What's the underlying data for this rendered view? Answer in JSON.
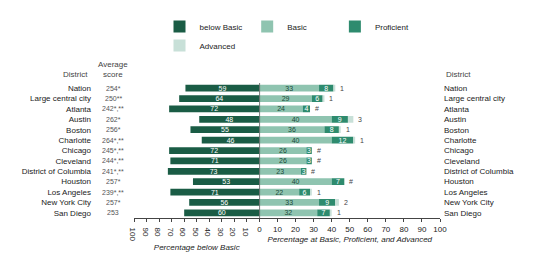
{
  "chart_data": [
    {
      "type": "bar",
      "orientation": "horizontal",
      "data_labels": true,
      "grid": false,
      "legend": "top",
      "xlabel": "Percentage below Basic",
      "category_header": "District",
      "score_header": "Average\nscore",
      "categories": [
        "Nation",
        "Large central city",
        "Atlanta",
        "Austin",
        "Boston",
        "Charlotte",
        "Chicago",
        "Cleveland",
        "District of Columbia",
        "Houston",
        "Los Angeles",
        "New York City",
        "San Diego"
      ],
      "scores": [
        "254*",
        "250**",
        "242*,**",
        "262*",
        "256*",
        "264*,**",
        "245*,**",
        "244*,**",
        "241*,**",
        "257*",
        "239*,**",
        "257*",
        "253"
      ],
      "series": [
        {
          "name": "below Basic",
          "color": "#1a5c45",
          "values": [
            59,
            64,
            72,
            48,
            55,
            46,
            72,
            71,
            73,
            53,
            71,
            56,
            60
          ]
        }
      ],
      "xlim": [
        100,
        0
      ],
      "xticks": [
        100,
        90,
        80,
        70,
        60,
        50,
        40,
        30,
        20,
        10
      ]
    },
    {
      "type": "bar",
      "orientation": "horizontal",
      "stacked": true,
      "data_labels": true,
      "grid": false,
      "legend": "top",
      "xlabel": "Percentage at Basic, Proficient, and Advanced",
      "category_header": "District",
      "categories": [
        "Nation",
        "Large central city",
        "Atlanta",
        "Austin",
        "Boston",
        "Charlotte",
        "Chicago",
        "Cleveland",
        "District of Columbia",
        "Houston",
        "Los Angeles",
        "New York City",
        "San Diego"
      ],
      "series": [
        {
          "name": "Basic",
          "color": "#8fc4b0",
          "values": [
            33,
            29,
            24,
            40,
            36,
            40,
            26,
            26,
            23,
            40,
            22,
            33,
            32
          ]
        },
        {
          "name": "Proficient",
          "color": "#2e8b6e",
          "values": [
            8,
            6,
            4,
            9,
            8,
            12,
            3,
            3,
            3,
            7,
            6,
            9,
            7
          ]
        },
        {
          "name": "Advanced",
          "color": "#c8e0d8",
          "values": [
            1,
            1,
            0,
            3,
            1,
            1,
            0,
            0,
            0,
            0,
            1,
            2,
            1
          ],
          "value_labels": [
            "1",
            "1",
            "#",
            "3",
            "1",
            "1",
            "#",
            "#",
            "#",
            "#",
            "1",
            "2",
            "1"
          ]
        }
      ],
      "xlim": [
        0,
        100
      ],
      "xticks": [
        0,
        10,
        20,
        30,
        40,
        50,
        60,
        70,
        80,
        90,
        100
      ]
    }
  ]
}
